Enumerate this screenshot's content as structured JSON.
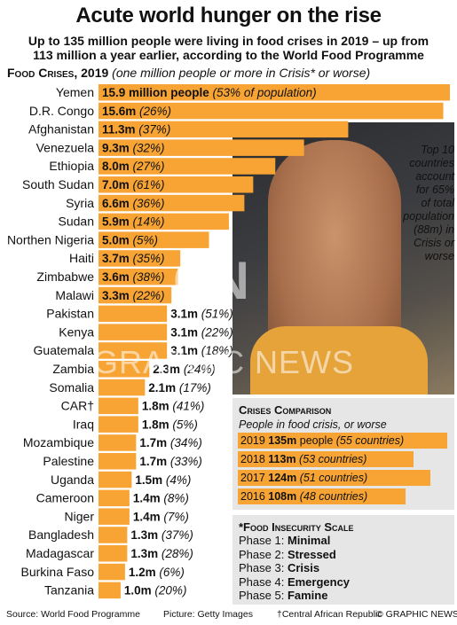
{
  "header": {
    "title": "Acute world hunger on the rise",
    "subtitle_line1": "Up to 135 million people were living in food crises in 2019 – up from",
    "subtitle_line2": "113 million a year earlier, according to the World Food Programme",
    "section_title": "Food Crises, 2019",
    "section_note": "(one million people or more in Crisis* or worse)"
  },
  "colors": {
    "bar": "#f7a434",
    "panel": "#e6e6e6"
  },
  "chart_data": {
    "type": "bar",
    "orientation": "horizontal",
    "title": "Food Crises, 2019",
    "unit": "million people",
    "categories": [
      "Yemen",
      "D.R. Congo",
      "Afghanistan",
      "Venezuela",
      "Ethiopia",
      "South Sudan",
      "Syria",
      "Sudan",
      "Northen Nigeria",
      "Haiti",
      "Zimbabwe",
      "Malawi",
      "Pakistan",
      "Kenya",
      "Guatemala",
      "Zambia",
      "Somalia",
      "CAR†",
      "Iraq",
      "Mozambique",
      "Palestine",
      "Uganda",
      "Cameroon",
      "Niger",
      "Bangladesh",
      "Madagascar",
      "Burkina Faso",
      "Tanzania"
    ],
    "values": [
      15.9,
      15.6,
      11.3,
      9.3,
      8.0,
      7.0,
      6.6,
      5.9,
      5.0,
      3.7,
      3.6,
      3.3,
      3.1,
      3.1,
      3.1,
      2.3,
      2.1,
      1.8,
      1.8,
      1.7,
      1.7,
      1.5,
      1.4,
      1.4,
      1.3,
      1.3,
      1.2,
      1.0
    ],
    "value_labels": [
      "15.9 million people",
      "15.6m",
      "11.3m",
      "9.3m",
      "8.0m",
      "7.0m",
      "6.6m",
      "5.9m",
      "5.0m",
      "3.7m",
      "3.6m",
      "3.3m",
      "3.1m",
      "3.1m",
      "3.1m",
      "2.3m",
      "2.1m",
      "1.8m",
      "1.8m",
      "1.7m",
      "1.7m",
      "1.5m",
      "1.4m",
      "1.4m",
      "1.3m",
      "1.3m",
      "1.2m",
      "1.0m"
    ],
    "pct_labels": [
      "(53% of population)",
      "(26%)",
      "(37%)",
      "(32%)",
      "(27%)",
      "(61%)",
      "(36%)",
      "(14%)",
      "(5%)",
      "(35%)",
      "(38%)",
      "(22%)",
      "(51%)",
      "(22%)",
      "(18%)",
      "(24%)",
      "(17%)",
      "(41%)",
      "(5%)",
      "(34%)",
      "(33%)",
      "(4%)",
      "(8%)",
      "(7%)",
      "(37%)",
      "(28%)",
      "(6%)",
      "(20%)"
    ],
    "xlim": [
      0,
      16
    ]
  },
  "callout": {
    "lines": [
      "Top 10",
      "countries",
      "account",
      "for 65%",
      "of total",
      "population",
      "(88m) in",
      "Crisis or",
      "worse"
    ]
  },
  "watermark": {
    "logo": "GN",
    "text": "GRAPHIC NEWS"
  },
  "comparison": {
    "title": "Crises Comparison",
    "subtitle": "People in food crisis, or worse",
    "rows": [
      {
        "year": "2019",
        "value": "135m",
        "suffix": " people",
        "note": "(55 countries)",
        "amount": 135
      },
      {
        "year": "2018",
        "value": "113m",
        "suffix": "",
        "note": "(53 countries)",
        "amount": 113
      },
      {
        "year": "2017",
        "value": "124m",
        "suffix": "",
        "note": "(51 countries)",
        "amount": 124
      },
      {
        "year": "2016",
        "value": "108m",
        "suffix": "",
        "note": "(48 countries)",
        "amount": 108
      }
    ]
  },
  "scale": {
    "title": "*Food Insecurity Scale",
    "phases": [
      {
        "label": "Phase 1: ",
        "name": "Minimal"
      },
      {
        "label": "Phase 2: ",
        "name": "Stressed"
      },
      {
        "label": "Phase 3: ",
        "name": "Crisis"
      },
      {
        "label": "Phase 4: ",
        "name": "Emergency"
      },
      {
        "label": "Phase 5: ",
        "name": "Famine"
      }
    ]
  },
  "footer": {
    "source": "Source: World Food Programme",
    "picture": "Picture: Getty Images",
    "note": "†Central African Republic",
    "credit": "© GRAPHIC NEWS"
  }
}
